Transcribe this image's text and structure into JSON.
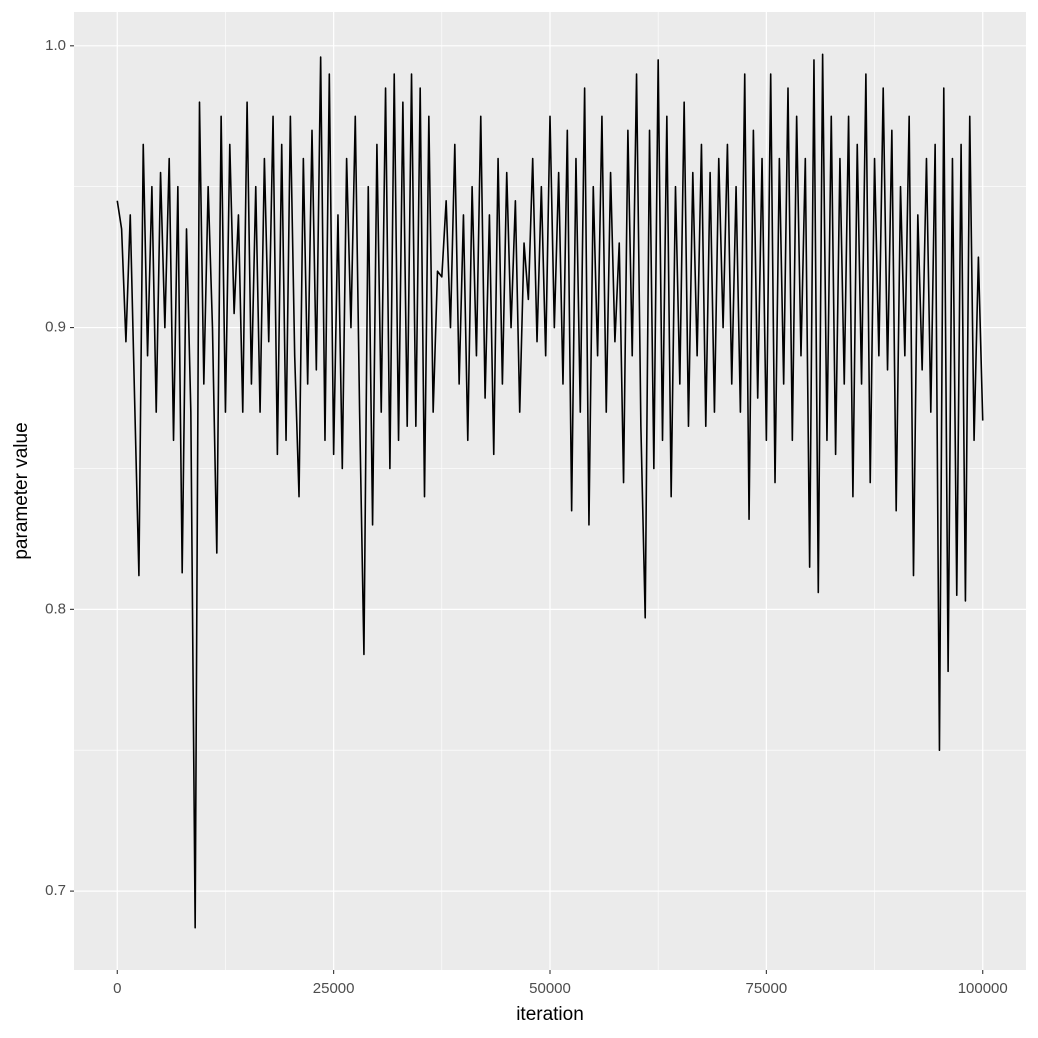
{
  "chart_data": {
    "type": "line",
    "x_label": "iteration",
    "y_label": "parameter value",
    "xlim": [
      -5000,
      105000
    ],
    "ylim": [
      0.672,
      1.012
    ],
    "xticks": [
      0,
      25000,
      50000,
      75000,
      100000
    ],
    "yticks": [
      0.7,
      0.8,
      0.9,
      {
        "value": 1,
        "label": "1.0"
      }
    ],
    "x_minor_ticks": [
      12500,
      37500,
      62500,
      87500
    ],
    "y_minor_ticks": [
      0.75,
      0.85,
      0.95
    ],
    "grid": true,
    "series": [
      {
        "color": "#000000",
        "x": [
          0,
          500,
          1000,
          1500,
          2000,
          2500,
          3000,
          3500,
          4000,
          4500,
          5000,
          5500,
          6000,
          6500,
          7000,
          7500,
          8000,
          8500,
          9000,
          9500,
          10000,
          10500,
          11000,
          11500,
          12000,
          12500,
          13000,
          13500,
          14000,
          14500,
          15000,
          15500,
          16000,
          16500,
          17000,
          17500,
          18000,
          18500,
          19000,
          19500,
          20000,
          20500,
          21000,
          21500,
          22000,
          22500,
          23000,
          23500,
          24000,
          24500,
          25000,
          25500,
          26000,
          26500,
          27000,
          27500,
          28000,
          28500,
          29000,
          29500,
          30000,
          30500,
          31000,
          31500,
          32000,
          32500,
          33000,
          33500,
          34000,
          34500,
          35000,
          35500,
          36000,
          36500,
          37000,
          37500,
          38000,
          38500,
          39000,
          39500,
          40000,
          40500,
          41000,
          41500,
          42000,
          42500,
          43000,
          43500,
          44000,
          44500,
          45000,
          45500,
          46000,
          46500,
          47000,
          47500,
          48000,
          48500,
          49000,
          49500,
          50000,
          50500,
          51000,
          51500,
          52000,
          52500,
          53000,
          53500,
          54000,
          54500,
          55000,
          55500,
          56000,
          56500,
          57000,
          57500,
          58000,
          58500,
          59000,
          59500,
          60000,
          60500,
          61000,
          61500,
          62000,
          62500,
          63000,
          63500,
          64000,
          64500,
          65000,
          65500,
          66000,
          66500,
          67000,
          67500,
          68000,
          68500,
          69000,
          69500,
          70000,
          70500,
          71000,
          71500,
          72000,
          72500,
          73000,
          73500,
          74000,
          74500,
          75000,
          75500,
          76000,
          76500,
          77000,
          77500,
          78000,
          78500,
          79000,
          79500,
          80000,
          80500,
          81000,
          81500,
          82000,
          82500,
          83000,
          83500,
          84000,
          84500,
          85000,
          85500,
          86000,
          86500,
          87000,
          87500,
          88000,
          88500,
          89000,
          89500,
          90000,
          90500,
          91000,
          91500,
          92000,
          92500,
          93000,
          93500,
          94000,
          94500,
          95000,
          95500,
          96000,
          96500,
          97000,
          97500,
          98000,
          98500,
          99000,
          99500,
          100000
        ],
        "values": [
          0.945,
          0.935,
          0.895,
          0.94,
          0.875,
          0.812,
          0.965,
          0.89,
          0.95,
          0.87,
          0.955,
          0.9,
          0.96,
          0.86,
          0.95,
          0.813,
          0.935,
          0.87,
          0.687,
          0.98,
          0.88,
          0.95,
          0.9,
          0.82,
          0.975,
          0.87,
          0.965,
          0.905,
          0.94,
          0.87,
          0.98,
          0.88,
          0.95,
          0.87,
          0.96,
          0.895,
          0.975,
          0.855,
          0.965,
          0.86,
          0.975,
          0.89,
          0.84,
          0.96,
          0.88,
          0.97,
          0.885,
          0.996,
          0.86,
          0.99,
          0.855,
          0.94,
          0.85,
          0.96,
          0.9,
          0.975,
          0.87,
          0.784,
          0.95,
          0.83,
          0.965,
          0.87,
          0.985,
          0.85,
          0.99,
          0.86,
          0.98,
          0.865,
          0.99,
          0.865,
          0.985,
          0.84,
          0.975,
          0.87,
          0.92,
          0.918,
          0.945,
          0.9,
          0.965,
          0.88,
          0.94,
          0.86,
          0.95,
          0.89,
          0.975,
          0.875,
          0.94,
          0.855,
          0.96,
          0.88,
          0.955,
          0.9,
          0.945,
          0.87,
          0.93,
          0.91,
          0.96,
          0.895,
          0.95,
          0.89,
          0.975,
          0.9,
          0.955,
          0.88,
          0.97,
          0.835,
          0.96,
          0.87,
          0.985,
          0.83,
          0.95,
          0.89,
          0.975,
          0.87,
          0.955,
          0.895,
          0.93,
          0.845,
          0.97,
          0.89,
          0.99,
          0.865,
          0.797,
          0.97,
          0.85,
          0.995,
          0.86,
          0.975,
          0.84,
          0.95,
          0.88,
          0.98,
          0.865,
          0.955,
          0.89,
          0.965,
          0.865,
          0.955,
          0.87,
          0.96,
          0.9,
          0.965,
          0.88,
          0.95,
          0.87,
          0.99,
          0.832,
          0.97,
          0.875,
          0.96,
          0.86,
          0.99,
          0.845,
          0.96,
          0.88,
          0.985,
          0.86,
          0.975,
          0.89,
          0.96,
          0.815,
          0.995,
          0.806,
          0.997,
          0.86,
          0.975,
          0.855,
          0.96,
          0.88,
          0.975,
          0.84,
          0.965,
          0.88,
          0.99,
          0.845,
          0.96,
          0.89,
          0.985,
          0.885,
          0.97,
          0.835,
          0.95,
          0.89,
          0.975,
          0.812,
          0.94,
          0.885,
          0.96,
          0.87,
          0.965,
          0.75,
          0.985,
          0.778,
          0.96,
          0.805,
          0.965,
          0.803,
          0.975,
          0.86,
          0.925,
          0.867
        ]
      }
    ]
  }
}
